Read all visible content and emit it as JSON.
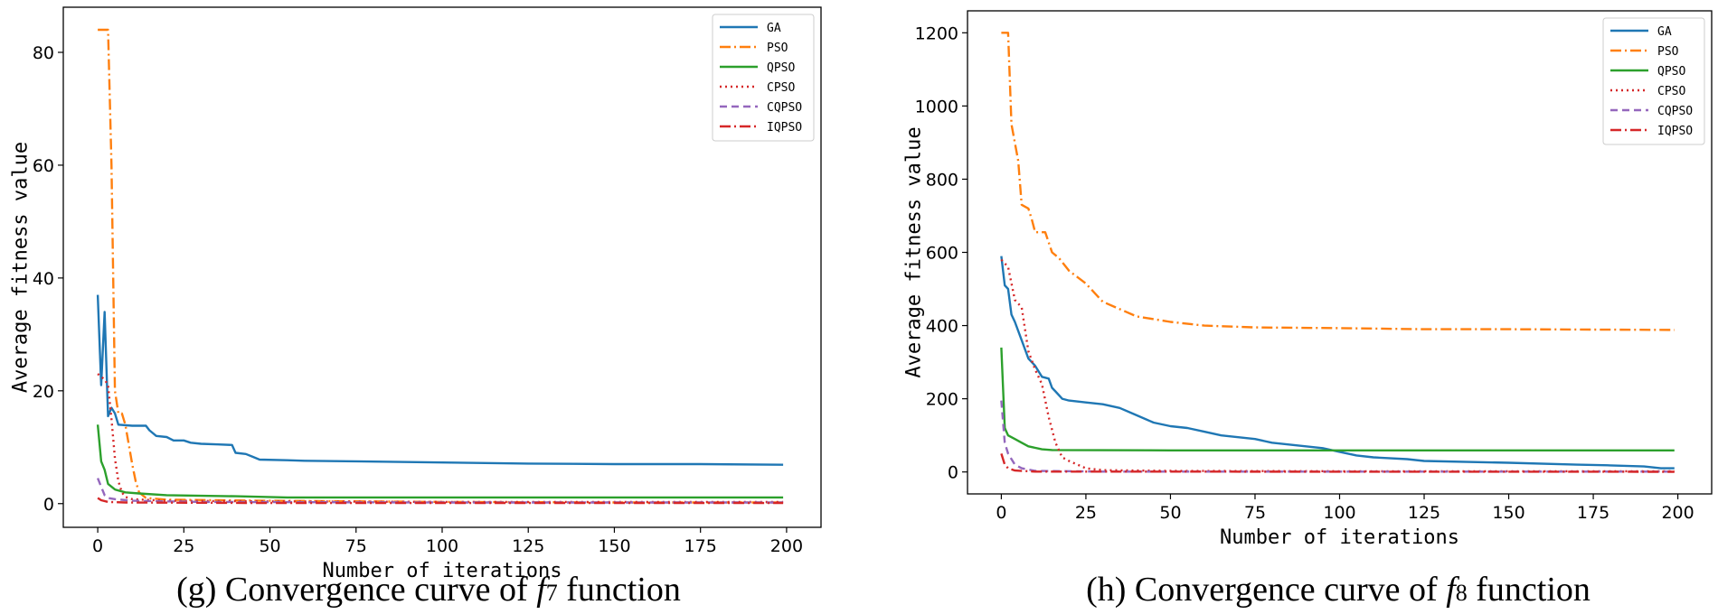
{
  "chart_data": [
    {
      "type": "line",
      "caption": "(g) Convergence curve of f7 function",
      "caption_parts": {
        "prefix": "(g) Convergence curve of ",
        "func": "f",
        "sub": "7",
        "suffix": " function"
      },
      "xlabel": "Number of iterations",
      "ylabel": "Average fitness value",
      "xlim": [
        -10,
        210
      ],
      "ylim": [
        -4.2,
        88
      ],
      "xticks": [
        0,
        25,
        50,
        75,
        100,
        125,
        150,
        175,
        200
      ],
      "yticks": [
        0,
        20,
        40,
        60,
        80
      ],
      "grid": false,
      "legend": "top-right",
      "series": [
        {
          "name": "GA",
          "color": "#1f77b4",
          "dash": "solid",
          "points": [
            [
              0,
              37
            ],
            [
              1,
              21
            ],
            [
              2,
              34
            ],
            [
              3,
              15.5
            ],
            [
              4,
              17
            ],
            [
              5,
              16
            ],
            [
              6,
              14
            ],
            [
              10,
              13.8
            ],
            [
              14,
              13.8
            ],
            [
              15,
              13
            ],
            [
              17,
              12
            ],
            [
              20,
              11.8
            ],
            [
              22,
              11.2
            ],
            [
              25,
              11.2
            ],
            [
              27,
              10.8
            ],
            [
              30,
              10.6
            ],
            [
              35,
              10.5
            ],
            [
              39,
              10.4
            ],
            [
              40,
              9
            ],
            [
              43,
              8.8
            ],
            [
              45,
              8.3
            ],
            [
              47,
              7.8
            ],
            [
              55,
              7.7
            ],
            [
              60,
              7.6
            ],
            [
              75,
              7.5
            ],
            [
              100,
              7.3
            ],
            [
              125,
              7.1
            ],
            [
              150,
              7
            ],
            [
              175,
              7
            ],
            [
              199,
              6.9
            ]
          ]
        },
        {
          "name": "PSO",
          "color": "#ff7f0e",
          "dash": "dashdot",
          "points": [
            [
              0,
              84
            ],
            [
              3,
              84
            ],
            [
              4,
              60
            ],
            [
              5,
              20
            ],
            [
              6,
              16
            ],
            [
              7,
              16
            ],
            [
              8,
              14
            ],
            [
              10,
              7
            ],
            [
              11,
              4
            ],
            [
              12,
              2
            ],
            [
              14,
              1
            ],
            [
              20,
              0.7
            ],
            [
              50,
              0.5
            ],
            [
              100,
              0.3
            ],
            [
              150,
              0.2
            ],
            [
              199,
              0.2
            ]
          ]
        },
        {
          "name": "QPSO",
          "color": "#2ca02c",
          "dash": "solid",
          "points": [
            [
              0,
              14
            ],
            [
              1,
              7.5
            ],
            [
              2,
              6
            ],
            [
              3,
              3.5
            ],
            [
              5,
              2.5
            ],
            [
              8,
              2
            ],
            [
              12,
              1.8
            ],
            [
              20,
              1.5
            ],
            [
              40,
              1.3
            ],
            [
              55,
              1.1
            ],
            [
              100,
              1.1
            ],
            [
              150,
              1.1
            ],
            [
              199,
              1.1
            ]
          ]
        },
        {
          "name": "CPSO",
          "color": "#d62728",
          "dash": "dotted",
          "points": [
            [
              0,
              23
            ],
            [
              2,
              22
            ],
            [
              3,
              21
            ],
            [
              4,
              15
            ],
            [
              5,
              8
            ],
            [
              6,
              4
            ],
            [
              7,
              2
            ],
            [
              8,
              1.2
            ],
            [
              10,
              0.8
            ],
            [
              20,
              0.5
            ],
            [
              50,
              0.4
            ],
            [
              100,
              0.3
            ],
            [
              199,
              0.3
            ]
          ]
        },
        {
          "name": "CQPSO",
          "color": "#9467bd",
          "dash": "dashed",
          "points": [
            [
              0,
              4.5
            ],
            [
              1,
              3
            ],
            [
              2,
              1.5
            ],
            [
              3,
              1
            ],
            [
              5,
              0.8
            ],
            [
              10,
              0.5
            ],
            [
              30,
              0.3
            ],
            [
              100,
              0.2
            ],
            [
              199,
              0.2
            ]
          ]
        },
        {
          "name": "IQPSO",
          "color": "#d62728",
          "dash": "dashdot",
          "points": [
            [
              0,
              1
            ],
            [
              1,
              0.6
            ],
            [
              3,
              0.3
            ],
            [
              8,
              0.2
            ],
            [
              50,
              0.1
            ],
            [
              199,
              0.1
            ]
          ]
        }
      ]
    },
    {
      "type": "line",
      "caption": "(h) Convergence curve of f8 function",
      "caption_parts": {
        "prefix": "(h) Convergence curve of ",
        "func": "f",
        "sub": "8",
        "suffix": " function"
      },
      "xlabel": "Number of iterations",
      "ylabel": "Average fitness value",
      "xlim": [
        -10,
        210
      ],
      "ylim": [
        -60,
        1260
      ],
      "xticks": [
        0,
        25,
        50,
        75,
        100,
        125,
        150,
        175,
        200
      ],
      "yticks": [
        0,
        200,
        400,
        600,
        800,
        1000,
        1200
      ],
      "grid": false,
      "legend": "top-right",
      "series": [
        {
          "name": "GA",
          "color": "#1f77b4",
          "dash": "solid",
          "points": [
            [
              0,
              590
            ],
            [
              1,
              510
            ],
            [
              2,
              500
            ],
            [
              3,
              430
            ],
            [
              4,
              410
            ],
            [
              6,
              360
            ],
            [
              8,
              310
            ],
            [
              10,
              290
            ],
            [
              12,
              260
            ],
            [
              14,
              255
            ],
            [
              15,
              230
            ],
            [
              16,
              220
            ],
            [
              18,
              200
            ],
            [
              20,
              195
            ],
            [
              25,
              190
            ],
            [
              30,
              185
            ],
            [
              35,
              175
            ],
            [
              40,
              155
            ],
            [
              45,
              135
            ],
            [
              50,
              125
            ],
            [
              55,
              120
            ],
            [
              60,
              110
            ],
            [
              65,
              100
            ],
            [
              70,
              95
            ],
            [
              75,
              90
            ],
            [
              80,
              80
            ],
            [
              85,
              75
            ],
            [
              90,
              70
            ],
            [
              95,
              65
            ],
            [
              100,
              55
            ],
            [
              105,
              45
            ],
            [
              110,
              40
            ],
            [
              120,
              35
            ],
            [
              125,
              30
            ],
            [
              150,
              25
            ],
            [
              170,
              20
            ],
            [
              180,
              18
            ],
            [
              190,
              15
            ],
            [
              195,
              10
            ],
            [
              199,
              10
            ]
          ]
        },
        {
          "name": "PSO",
          "color": "#ff7f0e",
          "dash": "dashdot",
          "points": [
            [
              0,
              1200
            ],
            [
              2,
              1200
            ],
            [
              3,
              950
            ],
            [
              5,
              850
            ],
            [
              6,
              730
            ],
            [
              8,
              720
            ],
            [
              9,
              690
            ],
            [
              10,
              655
            ],
            [
              13,
              655
            ],
            [
              15,
              600
            ],
            [
              17,
              585
            ],
            [
              20,
              550
            ],
            [
              25,
              515
            ],
            [
              30,
              465
            ],
            [
              35,
              445
            ],
            [
              40,
              425
            ],
            [
              50,
              410
            ],
            [
              60,
              400
            ],
            [
              75,
              395
            ],
            [
              100,
              393
            ],
            [
              125,
              390
            ],
            [
              150,
              390
            ],
            [
              175,
              389
            ],
            [
              199,
              388
            ]
          ]
        },
        {
          "name": "QPSO",
          "color": "#2ca02c",
          "dash": "solid",
          "points": [
            [
              0,
              340
            ],
            [
              1,
              120
            ],
            [
              2,
              100
            ],
            [
              4,
              90
            ],
            [
              6,
              80
            ],
            [
              8,
              70
            ],
            [
              12,
              62
            ],
            [
              15,
              60
            ],
            [
              50,
              59
            ],
            [
              100,
              59
            ],
            [
              150,
              59
            ],
            [
              199,
              59
            ]
          ]
        },
        {
          "name": "CPSO",
          "color": "#d62728",
          "dash": "dotted",
          "points": [
            [
              0,
              580
            ],
            [
              2,
              560
            ],
            [
              4,
              470
            ],
            [
              6,
              450
            ],
            [
              8,
              330
            ],
            [
              10,
              280
            ],
            [
              12,
              240
            ],
            [
              14,
              150
            ],
            [
              16,
              80
            ],
            [
              18,
              40
            ],
            [
              20,
              30
            ],
            [
              25,
              10
            ],
            [
              30,
              5
            ],
            [
              50,
              3
            ],
            [
              100,
              2
            ],
            [
              199,
              2
            ]
          ]
        },
        {
          "name": "CQPSO",
          "color": "#9467bd",
          "dash": "dashed",
          "points": [
            [
              0,
              195
            ],
            [
              1,
              80
            ],
            [
              2,
              50
            ],
            [
              4,
              20
            ],
            [
              6,
              10
            ],
            [
              10,
              3
            ],
            [
              30,
              1
            ],
            [
              199,
              1
            ]
          ]
        },
        {
          "name": "IQPSO",
          "color": "#d62728",
          "dash": "dashdot",
          "points": [
            [
              0,
              50
            ],
            [
              1,
              20
            ],
            [
              2,
              10
            ],
            [
              4,
              4
            ],
            [
              10,
              1
            ],
            [
              199,
              0.5
            ]
          ]
        }
      ]
    }
  ]
}
